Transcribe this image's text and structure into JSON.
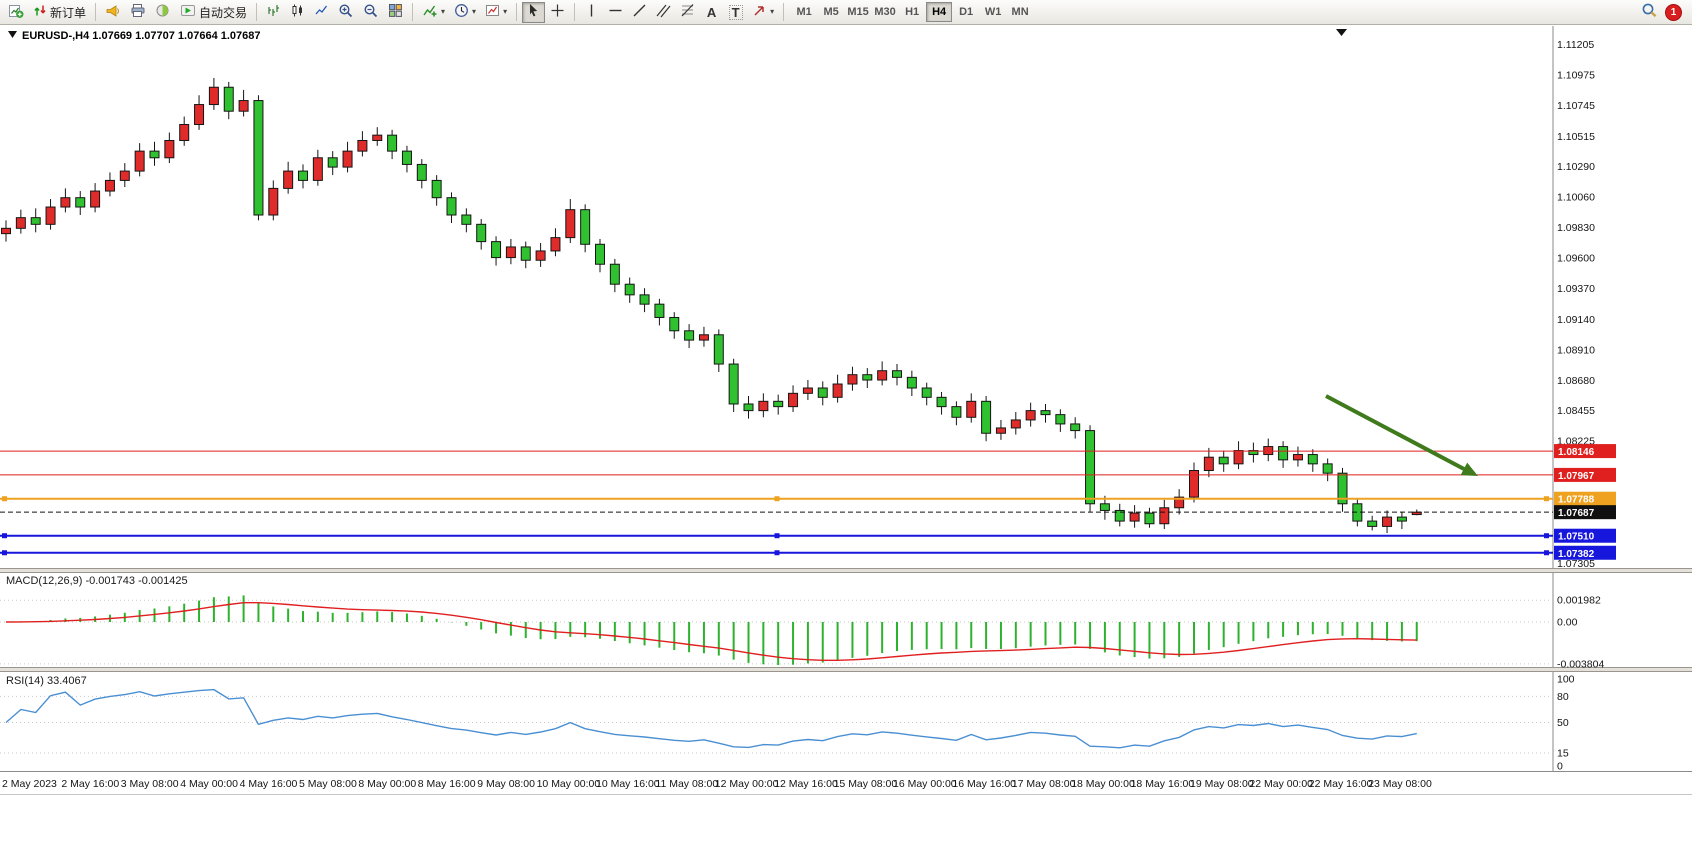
{
  "toolbar": {
    "new_order_label": "新订单",
    "auto_trading_label": "自动交易",
    "timeframes": [
      "M1",
      "M5",
      "M15",
      "M30",
      "H1",
      "H4",
      "D1",
      "W1",
      "MN"
    ],
    "active_timeframe": "H4",
    "notification_count": "1",
    "icons": {
      "caret": "▾",
      "text_tool": "A",
      "text_label_tool": "T"
    }
  },
  "chart": {
    "title_display": "EURUSD-,H4  1.07669 1.07707 1.07664 1.07687",
    "symbol": "EURUSD-",
    "timeframe": "H4",
    "open": "1.07669",
    "high": "1.07707",
    "low": "1.07664",
    "close": "1.07687"
  },
  "price_axis": {
    "labels": [
      "1.11205",
      "1.10975",
      "1.10745",
      "1.10515",
      "1.10290",
      "1.10060",
      "1.09830",
      "1.09600",
      "1.09370",
      "1.09140",
      "1.08910",
      "1.08680",
      "1.08455",
      "1.08225",
      "1.07305"
    ]
  },
  "time_axis": {
    "labels": [
      "2 May 2023",
      "2 May 16:00",
      "3 May 08:00",
      "4 May 00:00",
      "4 May 16:00",
      "5 May 08:00",
      "8 May 00:00",
      "8 May 16:00",
      "9 May 08:00",
      "10 May 00:00",
      "10 May 16:00",
      "11 May 08:00",
      "12 May 00:00",
      "12 May 16:00",
      "15 May 08:00",
      "16 May 00:00",
      "16 May 16:00",
      "17 May 08:00",
      "18 May 00:00",
      "18 May 16:00",
      "19 May 08:00",
      "22 May 00:00",
      "22 May 16:00",
      "23 May 08:00"
    ]
  },
  "levels": [
    {
      "label": "1.08146",
      "price": 1.08146,
      "color": "#e01f1f",
      "width": 1,
      "style": "solid",
      "selected": false
    },
    {
      "label": "1.07967",
      "price": 1.07967,
      "color": "#e01f1f",
      "width": 1,
      "style": "solid",
      "selected": false
    },
    {
      "label": "1.07788",
      "price": 1.07788,
      "color": "#efa120",
      "width": 2,
      "style": "solid",
      "selected": true
    },
    {
      "label": "1.07687",
      "price": 1.07687,
      "color": "#101010",
      "width": 1,
      "style": "dashed",
      "selected": false,
      "role": "current-price"
    },
    {
      "label": "1.07510",
      "price": 1.0751,
      "color": "#1616dc",
      "width": 2,
      "style": "solid",
      "selected": true
    },
    {
      "label": "1.07382",
      "price": 1.07382,
      "color": "#1616dc",
      "width": 2,
      "style": "solid",
      "selected": true
    }
  ],
  "macd": {
    "display": "MACD(12,26,9) -0.001743 -0.001425",
    "label": "MACD(12,26,9)",
    "main": "-0.001743",
    "signal": "-0.001425",
    "axis_labels": [
      "0.001982",
      "0.00",
      "-0.003804"
    ],
    "histogram_color": "#2db22d",
    "signal_color": "#e02020"
  },
  "rsi": {
    "display": "RSI(14) 33.4067",
    "label": "RSI(14)",
    "value": "33.4067",
    "axis_labels": [
      "100",
      "80",
      "50",
      "15",
      "0"
    ],
    "level_lines": [
      80,
      50,
      15
    ],
    "line_color": "#4a8fd2"
  },
  "annotation_arrow": {
    "color": "#3f7a1c"
  },
  "chart_data": {
    "type": "candlestick",
    "title": "EURUSD-,H4",
    "symbol": "EURUSD-",
    "timeframe": "H4",
    "x_label_step": 4,
    "y_axis": {
      "min": 1.07305,
      "max": 1.11205
    },
    "colors": {
      "bull": "#e02b2b",
      "bear": "#2fc12f",
      "outline": "#151515"
    },
    "candles": [
      [
        1.0978,
        1.0988,
        1.0972,
        1.0982
      ],
      [
        1.0982,
        1.0996,
        1.0978,
        1.099
      ],
      [
        1.099,
        1.0997,
        1.0979,
        1.0985
      ],
      [
        1.0985,
        1.1004,
        1.0981,
        1.0998
      ],
      [
        1.0998,
        1.1012,
        1.0994,
        1.1005
      ],
      [
        1.1005,
        1.101,
        1.0992,
        1.0998
      ],
      [
        1.0998,
        1.1016,
        1.0994,
        1.101
      ],
      [
        1.101,
        1.1024,
        1.1006,
        1.1018
      ],
      [
        1.1018,
        1.1031,
        1.1013,
        1.1025
      ],
      [
        1.1025,
        1.1046,
        1.1021,
        1.104
      ],
      [
        1.104,
        1.1047,
        1.1029,
        1.1035
      ],
      [
        1.1035,
        1.1054,
        1.1031,
        1.1048
      ],
      [
        1.1048,
        1.1066,
        1.1044,
        1.106
      ],
      [
        1.106,
        1.1082,
        1.1056,
        1.1075
      ],
      [
        1.1075,
        1.1095,
        1.1071,
        1.1088
      ],
      [
        1.1088,
        1.1092,
        1.1064,
        1.107
      ],
      [
        1.107,
        1.1086,
        1.1066,
        1.1078
      ],
      [
        1.1078,
        1.1082,
        1.0988,
        1.0992
      ],
      [
        1.0992,
        1.1018,
        1.0988,
        1.1012
      ],
      [
        1.1012,
        1.1032,
        1.1008,
        1.1025
      ],
      [
        1.1025,
        1.103,
        1.1012,
        1.1018
      ],
      [
        1.1018,
        1.1041,
        1.1014,
        1.1035
      ],
      [
        1.1035,
        1.104,
        1.1022,
        1.1028
      ],
      [
        1.1028,
        1.1047,
        1.1024,
        1.104
      ],
      [
        1.104,
        1.1055,
        1.1036,
        1.1048
      ],
      [
        1.1048,
        1.1058,
        1.1044,
        1.1052
      ],
      [
        1.1052,
        1.1056,
        1.1034,
        1.104
      ],
      [
        1.104,
        1.1044,
        1.1024,
        1.103
      ],
      [
        1.103,
        1.1034,
        1.1012,
        1.1018
      ],
      [
        1.1018,
        1.1022,
        1.0999,
        1.1005
      ],
      [
        1.1005,
        1.1009,
        1.0986,
        1.0992
      ],
      [
        1.0992,
        1.0997,
        1.0979,
        1.0985
      ],
      [
        1.0985,
        1.0989,
        1.0966,
        1.0972
      ],
      [
        1.0972,
        1.0976,
        1.0954,
        1.096
      ],
      [
        1.096,
        1.0974,
        1.0955,
        1.0968
      ],
      [
        1.0968,
        1.0972,
        1.0952,
        1.0958
      ],
      [
        1.0958,
        1.0971,
        1.0953,
        1.0965
      ],
      [
        1.0965,
        1.0982,
        1.0961,
        1.0975
      ],
      [
        1.0975,
        1.1004,
        1.0971,
        1.0996
      ],
      [
        1.0996,
        1.1,
        1.0964,
        1.097
      ],
      [
        1.097,
        1.0974,
        1.0949,
        1.0955
      ],
      [
        1.0955,
        1.0959,
        1.0934,
        1.094
      ],
      [
        1.094,
        1.0945,
        1.0926,
        1.0932
      ],
      [
        1.0932,
        1.0937,
        1.0919,
        1.0925
      ],
      [
        1.0925,
        1.0929,
        1.0909,
        1.0915
      ],
      [
        1.0915,
        1.0919,
        1.0899,
        1.0905
      ],
      [
        1.0905,
        1.091,
        1.0892,
        1.0898
      ],
      [
        1.0898,
        1.0908,
        1.0893,
        1.0902
      ],
      [
        1.0902,
        1.0906,
        1.0874,
        1.088
      ],
      [
        1.088,
        1.0884,
        1.0844,
        1.085
      ],
      [
        1.085,
        1.0856,
        1.0839,
        1.0845
      ],
      [
        1.0845,
        1.0858,
        1.084,
        1.0852
      ],
      [
        1.0852,
        1.0857,
        1.0842,
        1.0848
      ],
      [
        1.0848,
        1.0864,
        1.0844,
        1.0858
      ],
      [
        1.0858,
        1.0868,
        1.0853,
        1.0862
      ],
      [
        1.0862,
        1.0867,
        1.0849,
        1.0855
      ],
      [
        1.0855,
        1.0872,
        1.0851,
        1.0865
      ],
      [
        1.0865,
        1.0878,
        1.086,
        1.0872
      ],
      [
        1.0872,
        1.0877,
        1.0862,
        1.0868
      ],
      [
        1.0868,
        1.0882,
        1.0864,
        1.0875
      ],
      [
        1.0875,
        1.088,
        1.0864,
        1.087
      ],
      [
        1.087,
        1.0875,
        1.0856,
        1.0862
      ],
      [
        1.0862,
        1.0866,
        1.0849,
        1.0855
      ],
      [
        1.0855,
        1.0859,
        1.0842,
        1.0848
      ],
      [
        1.0848,
        1.0852,
        1.0834,
        1.084
      ],
      [
        1.084,
        1.0858,
        1.0836,
        1.0852
      ],
      [
        1.0852,
        1.0856,
        1.0822,
        1.0828
      ],
      [
        1.0828,
        1.0838,
        1.0823,
        1.0832
      ],
      [
        1.0832,
        1.0844,
        1.0827,
        1.0838
      ],
      [
        1.0838,
        1.0851,
        1.0833,
        1.0845
      ],
      [
        1.0845,
        1.085,
        1.0836,
        1.0842
      ],
      [
        1.0842,
        1.0846,
        1.0829,
        1.0835
      ],
      [
        1.0835,
        1.084,
        1.0824,
        1.083
      ],
      [
        1.083,
        1.0834,
        1.0769,
        1.0775
      ],
      [
        1.0775,
        1.0781,
        1.0763,
        1.077
      ],
      [
        1.077,
        1.0775,
        1.0758,
        1.0762
      ],
      [
        1.0762,
        1.0774,
        1.0757,
        1.0768
      ],
      [
        1.0768,
        1.0772,
        1.0757,
        1.076
      ],
      [
        1.076,
        1.0778,
        1.0756,
        1.0772
      ],
      [
        1.0772,
        1.0786,
        1.0767,
        1.078
      ],
      [
        1.078,
        1.0806,
        1.0776,
        1.08
      ],
      [
        1.08,
        1.0817,
        1.0795,
        1.081
      ],
      [
        1.081,
        1.0815,
        1.0799,
        1.0805
      ],
      [
        1.0805,
        1.0822,
        1.0801,
        1.0815
      ],
      [
        1.0815,
        1.0821,
        1.0806,
        1.0812
      ],
      [
        1.0812,
        1.0824,
        1.0807,
        1.0818
      ],
      [
        1.0818,
        1.0822,
        1.0802,
        1.0808
      ],
      [
        1.0808,
        1.0818,
        1.0803,
        1.0812
      ],
      [
        1.0812,
        1.0816,
        1.0799,
        1.0805
      ],
      [
        1.0805,
        1.0809,
        1.0792,
        1.0798
      ],
      [
        1.0798,
        1.0802,
        1.0769,
        1.0775
      ],
      [
        1.0775,
        1.0779,
        1.0758,
        1.0762
      ],
      [
        1.0762,
        1.0766,
        1.0755,
        1.0758
      ],
      [
        1.0758,
        1.077,
        1.0753,
        1.0765
      ],
      [
        1.0765,
        1.0769,
        1.0756,
        1.0762
      ],
      [
        1.07669,
        1.07707,
        1.07664,
        1.07687
      ]
    ],
    "indicators": [
      {
        "name": "MACD",
        "params": [
          12,
          26,
          9
        ],
        "current_main": -0.001743,
        "current_signal": -0.001425,
        "axis_range": [
          -0.003804,
          0.001982
        ]
      },
      {
        "name": "RSI",
        "params": [
          14
        ],
        "current": 33.4067,
        "axis_range": [
          0,
          100
        ],
        "levels": [
          80,
          50,
          15
        ]
      }
    ]
  }
}
